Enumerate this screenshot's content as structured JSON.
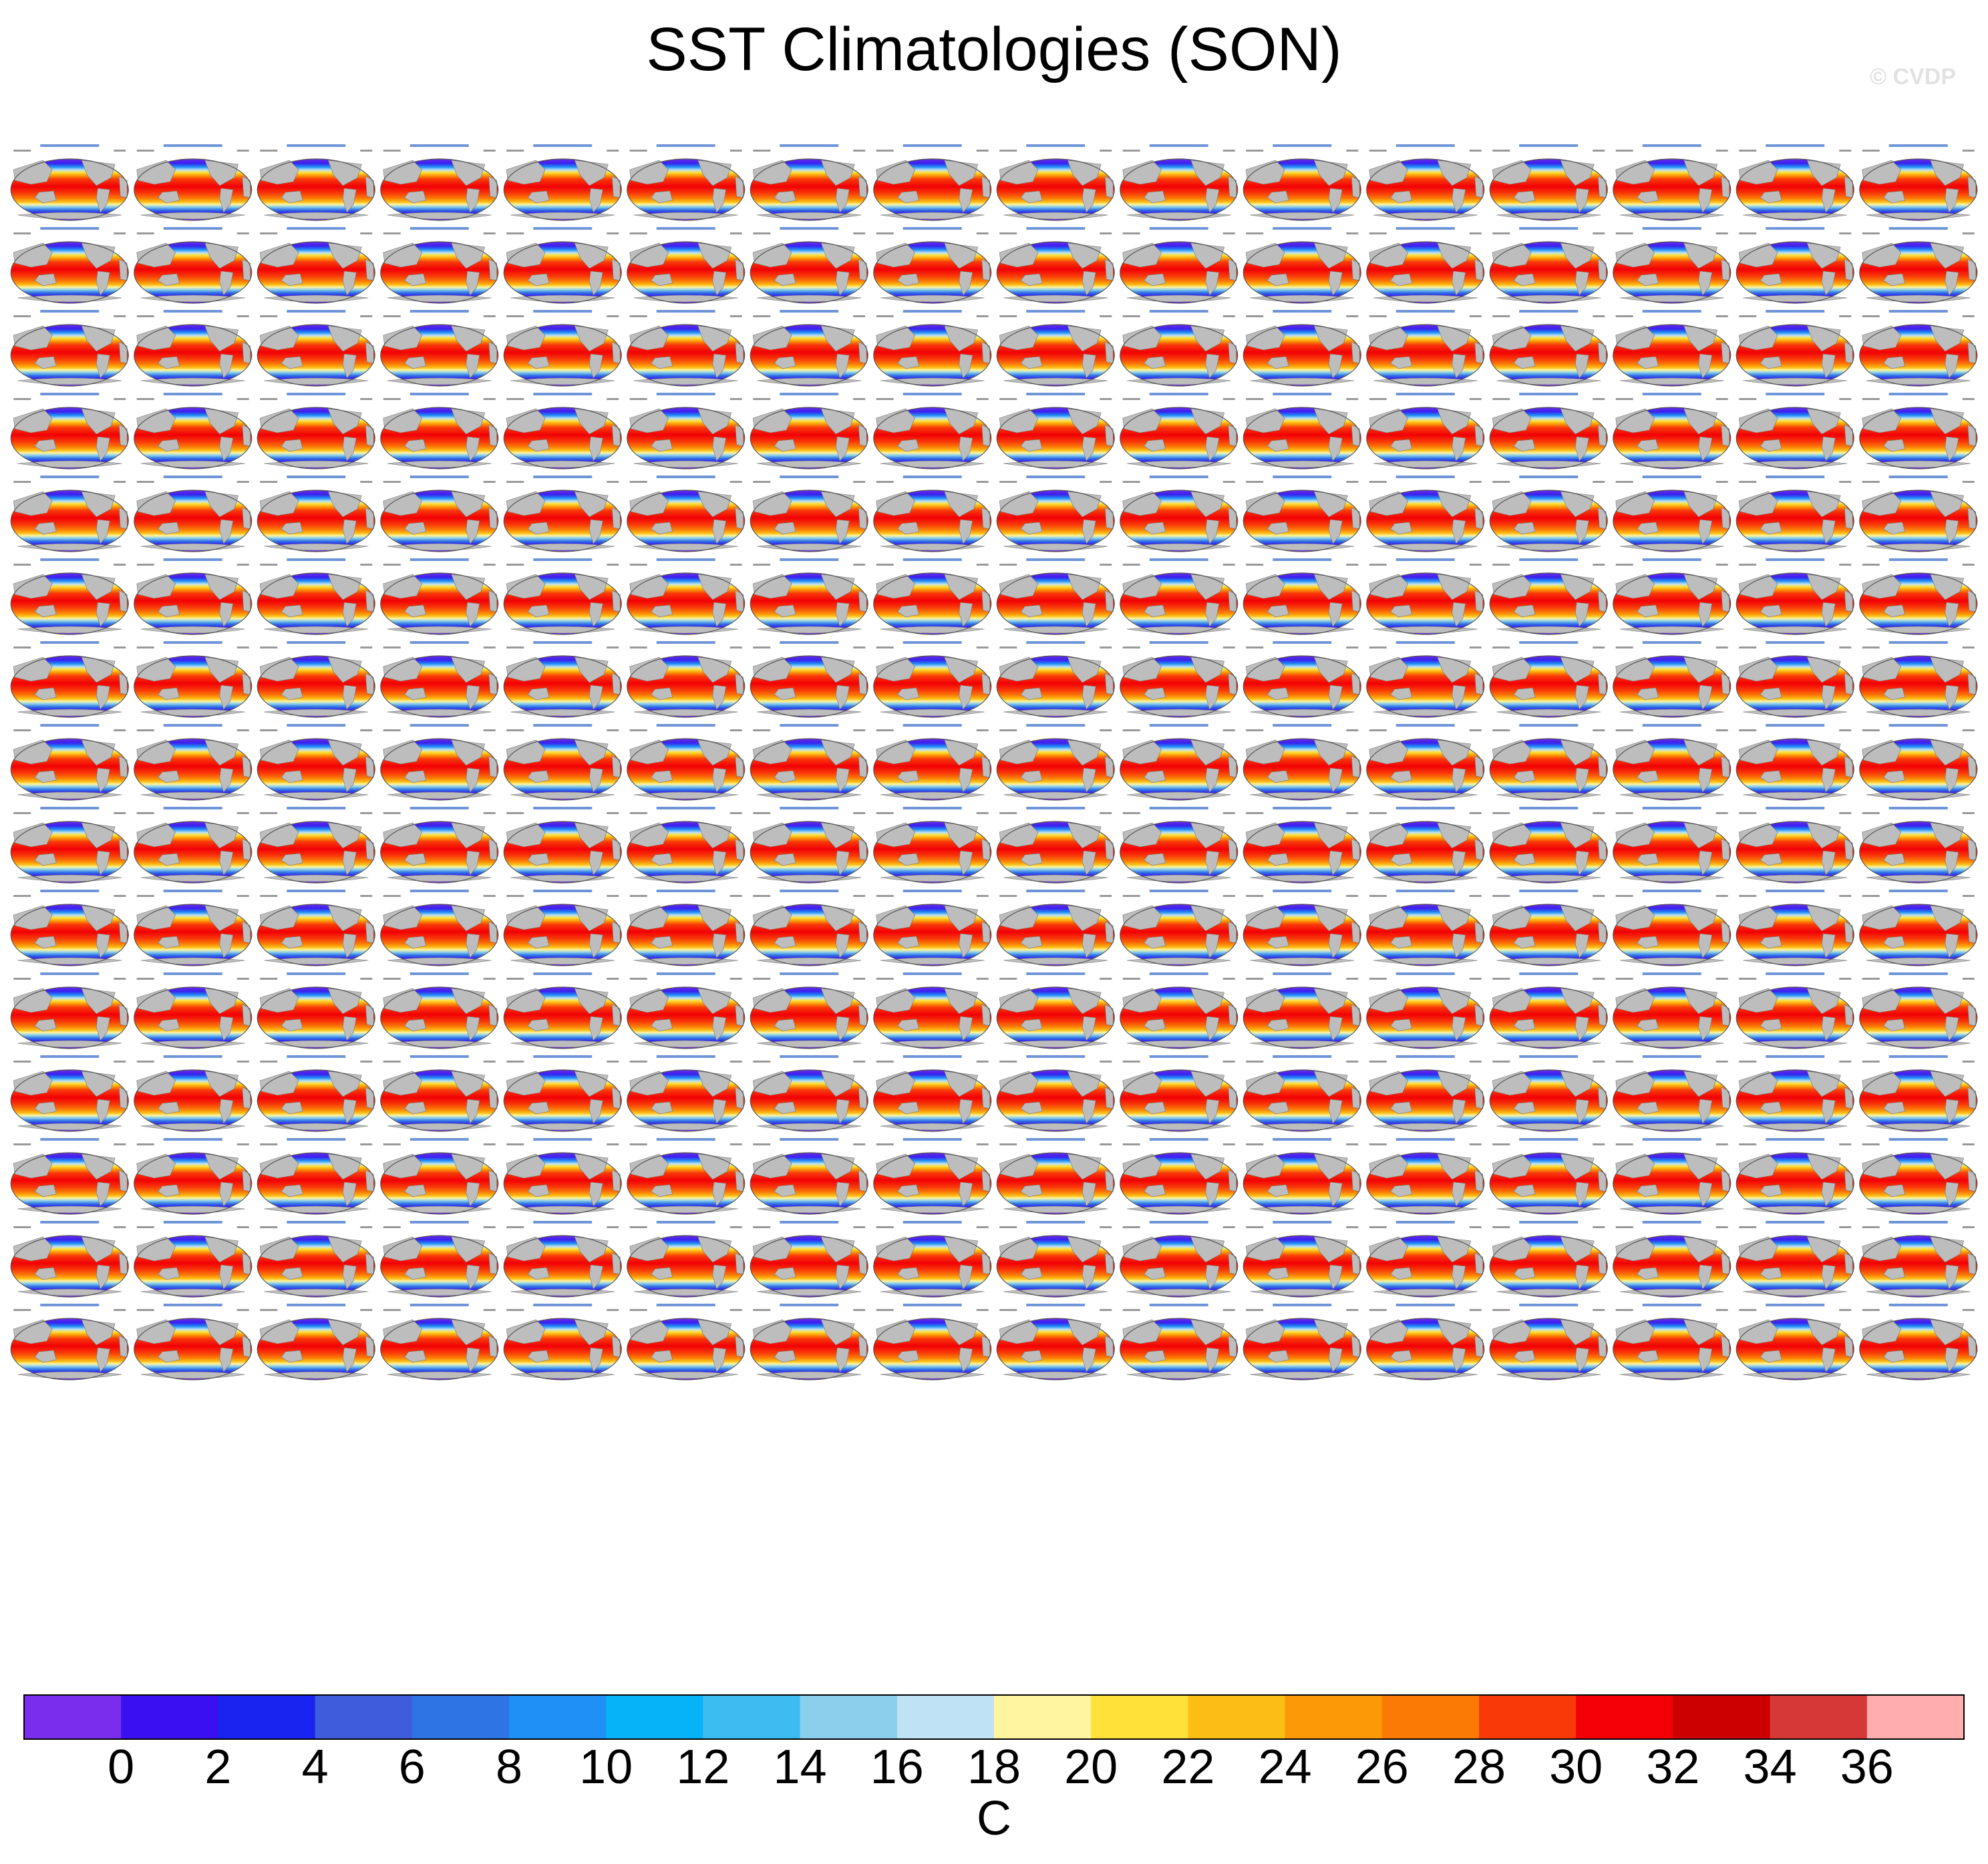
{
  "title": "SST Climatologies (SON)",
  "watermark": "© CVDP",
  "chart_data": {
    "type": "heatmap",
    "title": "SST Climatologies (SON)",
    "panel_rows": 15,
    "panel_cols": 16,
    "map_projection": "robinson-like global ellipse, Pacific-centered, land masked grey",
    "colorbar": {
      "unit": "C",
      "ticks": [
        0,
        2,
        4,
        6,
        8,
        10,
        12,
        14,
        16,
        18,
        20,
        22,
        24,
        26,
        28,
        30,
        32,
        34,
        36
      ],
      "colors": [
        "#7b2ded",
        "#3a10f2",
        "#1a24f0",
        "#3f5cdc",
        "#2e74e4",
        "#1e90f6",
        "#06b2f8",
        "#3cbcf0",
        "#8ccfec",
        "#bfe2f4",
        "#fff5a0",
        "#ffe13a",
        "#fcbd14",
        "#fb9a06",
        "#fb7a06",
        "#f93a08",
        "#f20006",
        "#cc0000",
        "#d63838",
        "#ffaeae"
      ],
      "range": [
        -1,
        38
      ]
    }
  }
}
